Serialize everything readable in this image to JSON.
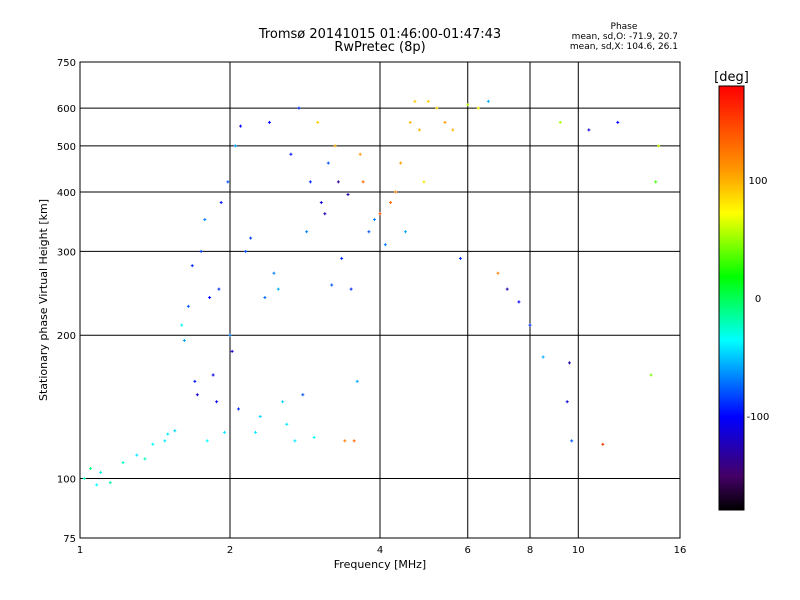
{
  "chart_data": {
    "type": "scatter",
    "title": "Tromsø 20141015 01:46:00-01:47:43",
    "subtitle": "RwPretec (8p)",
    "stats": {
      "header": "Phase",
      "line1": "mean, sd,O: -71.9, 20.7",
      "line2": "mean, sd,X: 104.6, 26.1"
    },
    "xlabel": "Frequency [MHz]",
    "ylabel": "Stationary phase Virtual Height [km]",
    "xscale": "log",
    "yscale": "log",
    "xlim": [
      1,
      16
    ],
    "ylim": [
      75,
      750
    ],
    "xticks": [
      1,
      2,
      4,
      6,
      8,
      10,
      16
    ],
    "xtick_labels": [
      "1",
      "2",
      "4",
      "6",
      "8",
      "10",
      "16"
    ],
    "yticks": [
      75,
      100,
      200,
      300,
      400,
      500,
      600,
      750
    ],
    "ytick_labels": [
      "75",
      "100",
      "200",
      "300",
      "400",
      "500",
      "600",
      "750"
    ],
    "grid": true,
    "colorbar": {
      "label": "[deg]",
      "range": [
        -180,
        180
      ],
      "ticks": [
        100,
        0,
        -100
      ],
      "tick_labels": [
        "100",
        "0",
        "-100"
      ]
    },
    "series": [
      {
        "x": [
          1.02,
          1.05,
          1.08,
          1.1,
          1.15,
          1.22,
          1.3,
          1.35,
          1.4,
          1.48,
          1.5,
          1.55,
          1.6,
          1.62,
          1.65,
          1.68,
          1.7,
          1.72,
          1.75,
          1.78,
          1.8,
          1.82,
          1.85,
          1.88,
          1.9,
          1.92,
          1.95,
          1.98,
          2.0,
          2.02,
          2.05,
          2.08,
          2.1,
          2.15,
          2.2,
          2.25,
          2.3,
          2.35,
          2.4,
          2.45,
          2.5,
          2.55,
          2.6,
          2.65,
          2.7,
          2.75,
          2.8,
          2.85,
          2.9,
          2.95,
          3.0,
          3.05,
          3.1,
          3.15,
          3.2,
          3.25,
          3.3,
          3.35,
          3.4,
          3.45,
          3.5,
          3.55,
          3.6,
          3.65,
          3.7,
          3.8,
          3.9,
          4.0,
          4.1,
          4.2,
          4.3,
          4.4,
          4.5,
          4.6,
          4.7,
          4.8,
          4.9,
          5.0,
          5.2,
          5.4,
          5.6,
          5.8,
          6.0,
          6.3,
          6.6,
          6.9,
          7.2,
          7.6,
          8.0,
          8.5,
          9.2,
          9.5,
          9.6,
          9.7,
          10.5,
          11.2,
          12.0,
          14.0,
          14.3,
          14.5
        ],
        "y": [
          100,
          105,
          97,
          103,
          98,
          108,
          112,
          110,
          118,
          120,
          124,
          126,
          210,
          195,
          230,
          280,
          160,
          150,
          300,
          350,
          120,
          240,
          165,
          145,
          250,
          380,
          125,
          420,
          200,
          185,
          500,
          140,
          550,
          300,
          320,
          125,
          135,
          240,
          560,
          270,
          250,
          145,
          130,
          480,
          120,
          600,
          150,
          330,
          420,
          122,
          560,
          380,
          360,
          460,
          255,
          500,
          420,
          290,
          120,
          395,
          250,
          120,
          160,
          480,
          420,
          330,
          350,
          360,
          310,
          380,
          400,
          460,
          330,
          560,
          620,
          540,
          420,
          620,
          600,
          560,
          540,
          290,
          610,
          600,
          620,
          270,
          250,
          235,
          210,
          180,
          560,
          145,
          175,
          120,
          540,
          118,
          560,
          165,
          420,
          500
        ],
        "phase": [
          -30,
          -20,
          -40,
          -35,
          -25,
          -30,
          -45,
          -30,
          -40,
          -45,
          -45,
          -50,
          -40,
          -60,
          -80,
          -90,
          -95,
          -110,
          -85,
          -70,
          -40,
          -100,
          -105,
          -100,
          -90,
          -95,
          -45,
          -80,
          -70,
          -110,
          -60,
          -90,
          -100,
          -80,
          -85,
          -45,
          -50,
          -75,
          -100,
          -70,
          -60,
          -50,
          -45,
          -95,
          -45,
          -90,
          -80,
          -70,
          -90,
          -40,
          100,
          -110,
          -120,
          -80,
          -80,
          110,
          -130,
          -90,
          130,
          -120,
          -90,
          140,
          -60,
          120,
          140,
          -80,
          -70,
          150,
          -70,
          140,
          130,
          120,
          -60,
          110,
          100,
          110,
          90,
          100,
          95,
          120,
          110,
          -90,
          60,
          80,
          -60,
          130,
          -120,
          -100,
          -90,
          -60,
          50,
          -110,
          -120,
          -80,
          -110,
          160,
          -100,
          40,
          20,
          60
        ]
      }
    ]
  }
}
